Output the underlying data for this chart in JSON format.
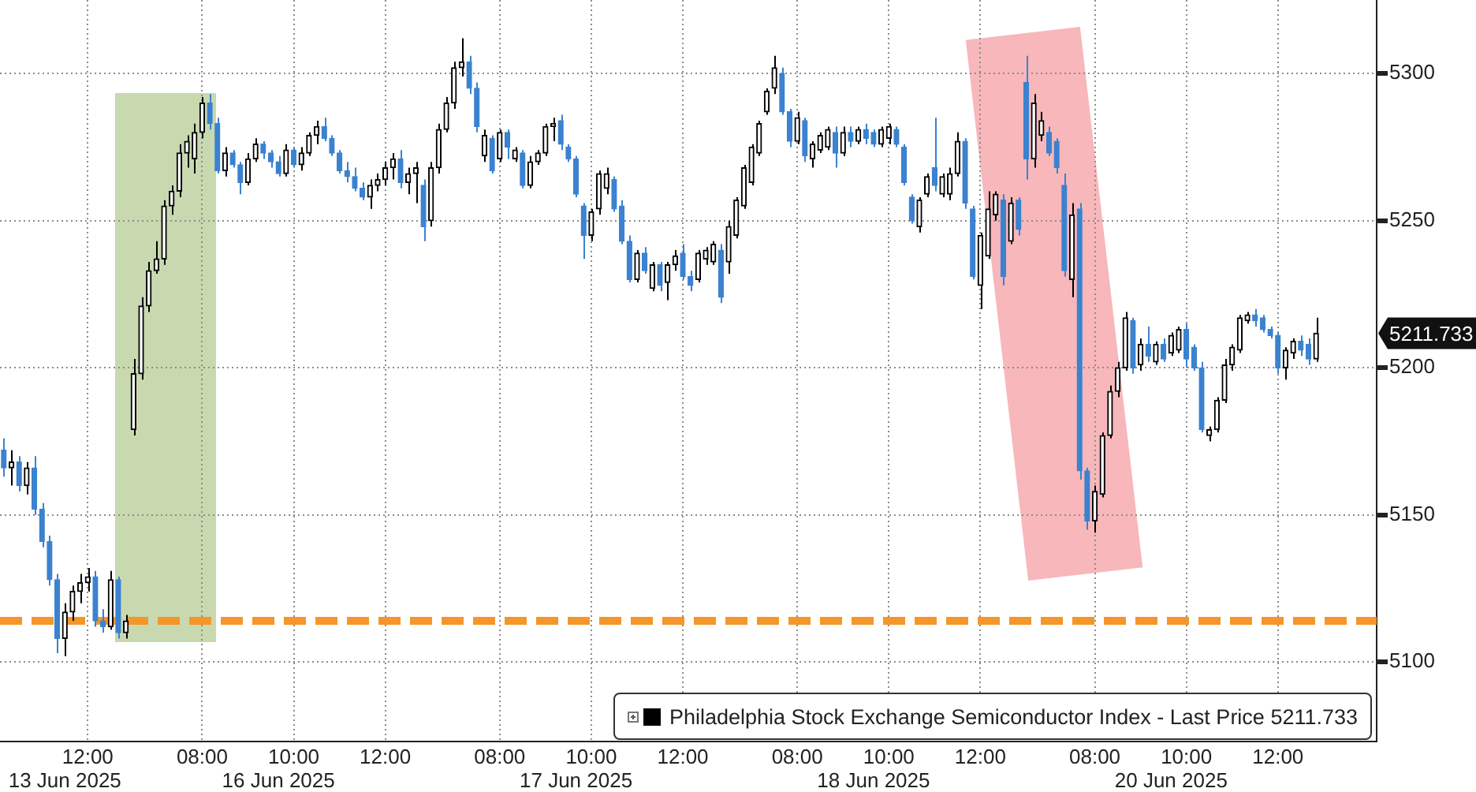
{
  "chart_data": {
    "type": "candlestick",
    "categories": [
      null,
      null,
      null,
      null,
      null,
      null,
      null,
      null,
      "13 Jun 2025",
      null,
      null,
      "12:00",
      null,
      null,
      null,
      null,
      null,
      null,
      null,
      null,
      null,
      null,
      null,
      null,
      null,
      null,
      "08:00",
      null,
      null,
      null,
      null,
      null,
      null,
      null,
      null,
      null,
      "16 Jun 2025",
      null,
      "10:00",
      null,
      null,
      null,
      null,
      null,
      null,
      null,
      null,
      null,
      null,
      null,
      "12:00",
      null,
      null,
      null,
      null,
      null,
      null,
      null,
      null,
      null,
      null,
      null,
      null,
      null,
      null,
      "08:00",
      null,
      null,
      null,
      null,
      null,
      null,
      null,
      null,
      null,
      "17 Jun 2025",
      null,
      "10:00",
      null,
      null,
      null,
      null,
      null,
      null,
      null,
      null,
      null,
      null,
      null,
      "12:00",
      null,
      null,
      null,
      null,
      null,
      null,
      null,
      null,
      null,
      null,
      null,
      null,
      null,
      null,
      "08:00",
      null,
      null,
      null,
      null,
      null,
      null,
      null,
      null,
      null,
      "18 Jun 2025",
      null,
      "10:00",
      null,
      null,
      null,
      null,
      null,
      null,
      null,
      null,
      null,
      null,
      null,
      "12:00",
      null,
      null,
      null,
      null,
      null,
      null,
      null,
      null,
      null,
      null,
      null,
      null,
      null,
      null,
      "08:00",
      null,
      null,
      null,
      null,
      null,
      null,
      null,
      null,
      null,
      "20 Jun 2025",
      null,
      "10:00",
      null,
      null,
      null,
      null,
      null,
      null,
      null,
      null,
      null,
      null,
      null,
      "12:00",
      null,
      null,
      null,
      null,
      null
    ],
    "ylim": [
      5073,
      5325
    ],
    "yticks": [
      5100,
      5150,
      5200,
      5250,
      5300
    ],
    "series": [
      {
        "name": "Philadelphia Stock Exchange Semiconductor Index - Last Price 5211.733",
        "color": "#000000",
        "colors": [
          "#3b82d0",
          "#000000",
          "#3b82d0",
          "#000000",
          "#3b82d0",
          "#3b82d0",
          "#3b82d0",
          "#3b82d0",
          "#000000",
          "#000000",
          "#000000",
          "#000000",
          "#3b82d0",
          "#3b82d0",
          "#000000",
          "#3b82d0",
          "#000000",
          "#000000",
          "#000000",
          "#000000",
          "#000000",
          "#000000",
          "#000000",
          "#000000",
          "#000000",
          "#000000",
          "#000000",
          "#3b82d0",
          "#3b82d0",
          "#000000",
          "#3b82d0",
          "#3b82d0",
          "#000000",
          "#000000",
          "#3b82d0",
          "#3b82d0",
          "#3b82d0",
          "#000000",
          "#3b82d0",
          "#000000",
          "#000000",
          "#000000",
          "#3b82d0",
          "#3b82d0",
          "#3b82d0",
          "#3b82d0",
          "#3b82d0",
          "#3b82d0",
          "#000000",
          "#000000",
          "#000000",
          "#000000",
          "#3b82d0",
          "#000000",
          "#000000",
          "#3b82d0",
          "#000000",
          "#000000",
          "#000000",
          "#000000",
          "#000000",
          "#3b82d0",
          "#3b82d0",
          "#000000",
          "#3b82d0",
          "#000000",
          "#3b82d0",
          "#000000",
          "#3b82d0",
          "#000000",
          "#000000",
          "#000000",
          "#000000",
          "#3b82d0",
          "#3b82d0",
          "#3b82d0",
          "#3b82d0",
          "#000000",
          "#000000",
          "#000000",
          "#3b82d0",
          "#3b82d0",
          "#3b82d0",
          "#000000",
          "#3b82d0",
          "#000000",
          "#3b82d0",
          "#000000",
          "#000000",
          "#3b82d0",
          "#3b82d0",
          "#000000",
          "#000000",
          "#000000",
          "#3b82d0",
          "#000000",
          "#000000",
          "#000000",
          "#000000",
          "#000000",
          "#000000",
          "#000000",
          "#3b82d0",
          "#3b82d0",
          "#000000",
          "#3b82d0",
          "#000000",
          "#000000",
          "#000000",
          "#3b82d0",
          "#000000",
          "#3b82d0",
          "#000000",
          "#3b82d0",
          "#3b82d0",
          "#000000",
          "#000000",
          "#3b82d0",
          "#3b82d0",
          "#3b82d0",
          "#000000",
          "#000000",
          "#3b82d0",
          "#000000",
          "#000000",
          "#000000",
          "#3b82d0",
          "#3b82d0",
          "#000000",
          "#000000",
          "#000000",
          "#3b82d0",
          "#000000",
          "#3b82d0",
          "#3b82d0",
          "#000000",
          "#000000",
          "#3b82d0",
          "#3b82d0",
          "#3b82d0",
          "#000000",
          "#3b82d0",
          "#3b82d0",
          "#000000",
          "#000000",
          "#000000",
          "#000000",
          "#000000",
          "#3b82d0",
          "#000000",
          "#3b82d0",
          "#000000",
          "#3b82d0",
          "#000000",
          "#000000",
          "#3b82d0",
          "#3b82d0",
          "#3b82d0",
          "#000000",
          "#000000",
          "#000000",
          "#000000",
          "#000000",
          "#000000",
          "#3b82d0",
          "#3b82d0",
          "#3b82d0",
          "#3b82d0",
          "#000000",
          "#000000",
          "#3b82d0",
          "#3b82d0",
          "#000000"
        ],
        "ohlc": [
          [
            5172,
            5176,
            5163,
            5166
          ],
          [
            5166,
            5172,
            5160,
            5168
          ],
          [
            5168,
            5170,
            5158,
            5160
          ],
          [
            5160,
            5168,
            5157,
            5166
          ],
          [
            5166,
            5170,
            5150,
            5152
          ],
          [
            5152,
            5154,
            5139,
            5141
          ],
          [
            5141,
            5143,
            5126,
            5128
          ],
          [
            5128,
            5130,
            5103,
            5108
          ],
          [
            5108,
            5120,
            5102,
            5117
          ],
          [
            5117,
            5126,
            5114,
            5124
          ],
          [
            5124,
            5130,
            5120,
            5127
          ],
          [
            5127,
            5132,
            5124,
            5129
          ],
          [
            5129,
            5131,
            5112,
            5114
          ],
          [
            5114,
            5118,
            5110,
            5112
          ],
          [
            5112,
            5131,
            5111,
            5128
          ],
          [
            5128,
            5129,
            5108,
            5110
          ],
          [
            5110,
            5116,
            5108,
            5114
          ],
          [
            5179,
            5203,
            5177,
            5198
          ],
          [
            5198,
            5224,
            5196,
            5221
          ],
          [
            5221,
            5236,
            5219,
            5233
          ],
          [
            5233,
            5243,
            5232,
            5237
          ],
          [
            5237,
            5257,
            5235,
            5255
          ],
          [
            5255,
            5262,
            5252,
            5260
          ],
          [
            5260,
            5276,
            5258,
            5273
          ],
          [
            5273,
            5279,
            5268,
            5277
          ],
          [
            5271,
            5283,
            5266,
            5280
          ],
          [
            5280,
            5292,
            5278,
            5290
          ],
          [
            5290,
            5293,
            5281,
            5283
          ],
          [
            5283,
            5285,
            5266,
            5267
          ],
          [
            5267,
            5275,
            5265,
            5273
          ],
          [
            5273,
            5274,
            5268,
            5269
          ],
          [
            5269,
            5270,
            5259,
            5263
          ],
          [
            5263,
            5273,
            5262,
            5271
          ],
          [
            5271,
            5278,
            5270,
            5276
          ],
          [
            5276,
            5277,
            5271,
            5273
          ],
          [
            5273,
            5274,
            5268,
            5270
          ],
          [
            5270,
            5272,
            5265,
            5266
          ],
          [
            5266,
            5276,
            5265,
            5274
          ],
          [
            5274,
            5275,
            5268,
            5269
          ],
          [
            5269,
            5275,
            5267,
            5273
          ],
          [
            5273,
            5280,
            5272,
            5279
          ],
          [
            5279,
            5284,
            5276,
            5282
          ],
          [
            5282,
            5285,
            5277,
            5278
          ],
          [
            5278,
            5279,
            5272,
            5273
          ],
          [
            5273,
            5274,
            5266,
            5267
          ],
          [
            5267,
            5270,
            5263,
            5265
          ],
          [
            5265,
            5268,
            5260,
            5261
          ],
          [
            5261,
            5263,
            5257,
            5258
          ],
          [
            5258,
            5264,
            5254,
            5262
          ],
          [
            5262,
            5266,
            5260,
            5264
          ],
          [
            5264,
            5270,
            5262,
            5268
          ],
          [
            5268,
            5273,
            5264,
            5271
          ],
          [
            5271,
            5274,
            5261,
            5263
          ],
          [
            5263,
            5268,
            5259,
            5266
          ],
          [
            5266,
            5270,
            5256,
            5268
          ],
          [
            5262,
            5264,
            5243,
            5248
          ],
          [
            5250,
            5270,
            5248,
            5268
          ],
          [
            5268,
            5283,
            5266,
            5281
          ],
          [
            5281,
            5292,
            5280,
            5290
          ],
          [
            5290,
            5304,
            5288,
            5302
          ],
          [
            5302,
            5312,
            5299,
            5304
          ],
          [
            5304,
            5306,
            5293,
            5295
          ],
          [
            5295,
            5297,
            5280,
            5282
          ],
          [
            5272,
            5281,
            5270,
            5279
          ],
          [
            5278,
            5279,
            5266,
            5267
          ],
          [
            5271,
            5281,
            5270,
            5280
          ],
          [
            5280,
            5281,
            5271,
            5275
          ],
          [
            5271,
            5275,
            5270,
            5274
          ],
          [
            5273,
            5274,
            5261,
            5262
          ],
          [
            5262,
            5272,
            5261,
            5270
          ],
          [
            5270,
            5274,
            5269,
            5273
          ],
          [
            5273,
            5283,
            5272,
            5282
          ],
          [
            5282,
            5285,
            5277,
            5283
          ],
          [
            5284,
            5286,
            5274,
            5276
          ],
          [
            5275,
            5276,
            5270,
            5271
          ],
          [
            5271,
            5272,
            5258,
            5259
          ],
          [
            5255,
            5256,
            5237,
            5245
          ],
          [
            5245,
            5254,
            5243,
            5253
          ],
          [
            5254,
            5267,
            5252,
            5266
          ],
          [
            5261,
            5268,
            5259,
            5266
          ],
          [
            5264,
            5265,
            5253,
            5254
          ],
          [
            5255,
            5257,
            5242,
            5243
          ],
          [
            5243,
            5245,
            5229,
            5230
          ],
          [
            5230,
            5240,
            5229,
            5239
          ],
          [
            5239,
            5241,
            5232,
            5233
          ],
          [
            5227,
            5236,
            5226,
            5235
          ],
          [
            5235,
            5236,
            5226,
            5228
          ],
          [
            5229,
            5236,
            5223,
            5235
          ],
          [
            5235,
            5240,
            5233,
            5238
          ],
          [
            5239,
            5242,
            5230,
            5231
          ],
          [
            5231,
            5233,
            5226,
            5228
          ],
          [
            5230,
            5240,
            5229,
            5239
          ],
          [
            5237,
            5241,
            5235,
            5240
          ],
          [
            5236,
            5243,
            5235,
            5242
          ],
          [
            5240,
            5242,
            5222,
            5224
          ],
          [
            5236,
            5250,
            5232,
            5248
          ],
          [
            5245,
            5258,
            5244,
            5257
          ],
          [
            5255,
            5269,
            5254,
            5268
          ],
          [
            5263,
            5276,
            5262,
            5275
          ],
          [
            5273,
            5284,
            5272,
            5283
          ],
          [
            5287,
            5295,
            5286,
            5294
          ],
          [
            5295,
            5306,
            5293,
            5302
          ],
          [
            5300,
            5302,
            5286,
            5287
          ],
          [
            5287,
            5288,
            5275,
            5277
          ],
          [
            5277,
            5287,
            5276,
            5285
          ],
          [
            5284,
            5285,
            5270,
            5272
          ],
          [
            5271,
            5277,
            5268,
            5276
          ],
          [
            5274,
            5280,
            5273,
            5279
          ],
          [
            5275,
            5282,
            5274,
            5281
          ],
          [
            5280,
            5282,
            5268,
            5273
          ],
          [
            5273,
            5282,
            5272,
            5280
          ],
          [
            5280,
            5282,
            5275,
            5277
          ],
          [
            5277,
            5282,
            5276,
            5281
          ],
          [
            5281,
            5283,
            5276,
            5278
          ],
          [
            5280,
            5281,
            5275,
            5276
          ],
          [
            5276,
            5282,
            5275,
            5281
          ],
          [
            5278,
            5283,
            5276,
            5282
          ],
          [
            5281,
            5282,
            5275,
            5276
          ],
          [
            5275,
            5276,
            5262,
            5263
          ],
          [
            5258,
            5259,
            5249,
            5250
          ],
          [
            5248,
            5258,
            5246,
            5257
          ],
          [
            5259,
            5266,
            5258,
            5265
          ],
          [
            5268,
            5285,
            5260,
            5262
          ],
          [
            5259,
            5266,
            5258,
            5265
          ],
          [
            5259,
            5268,
            5257,
            5266
          ],
          [
            5266,
            5280,
            5265,
            5277
          ],
          [
            5277,
            5278,
            5254,
            5256
          ],
          [
            5254,
            5255,
            5230,
            5231
          ],
          [
            5228,
            5246,
            5220,
            5245
          ],
          [
            5238,
            5260,
            5237,
            5254
          ],
          [
            5252,
            5260,
            5250,
            5259
          ],
          [
            5257,
            5259,
            5228,
            5231
          ],
          [
            5243,
            5258,
            5242,
            5256
          ],
          [
            5257,
            5258,
            5245,
            5247
          ],
          [
            5297,
            5306,
            5264,
            5271
          ],
          [
            5271,
            5293,
            5268,
            5290
          ],
          [
            5279,
            5287,
            5277,
            5284
          ],
          [
            5280,
            5282,
            5272,
            5273
          ],
          [
            5277,
            5278,
            5266,
            5268
          ],
          [
            5262,
            5266,
            5231,
            5233
          ],
          [
            5230,
            5256,
            5224,
            5252
          ],
          [
            5254,
            5256,
            5162,
            5165
          ],
          [
            5165,
            5166,
            5145,
            5148
          ],
          [
            5148,
            5160,
            5144,
            5158
          ],
          [
            5157,
            5178,
            5156,
            5177
          ],
          [
            5177,
            5194,
            5176,
            5192
          ],
          [
            5192,
            5202,
            5190,
            5200
          ],
          [
            5200,
            5219,
            5199,
            5217
          ],
          [
            5216,
            5217,
            5198,
            5200
          ],
          [
            5201,
            5210,
            5199,
            5208
          ],
          [
            5208,
            5214,
            5202,
            5204
          ],
          [
            5202,
            5209,
            5201,
            5208
          ],
          [
            5208,
            5210,
            5202,
            5203
          ],
          [
            5205,
            5212,
            5204,
            5211
          ],
          [
            5206,
            5214,
            5205,
            5213
          ],
          [
            5213,
            5215,
            5200,
            5203
          ],
          [
            5207,
            5208,
            5199,
            5200
          ],
          [
            5200,
            5202,
            5178,
            5179
          ],
          [
            5177,
            5180,
            5175,
            5179
          ],
          [
            5179,
            5190,
            5178,
            5189
          ],
          [
            5189,
            5203,
            5188,
            5201
          ],
          [
            5201,
            5208,
            5199,
            5207
          ],
          [
            5206,
            5218,
            5205,
            5217
          ],
          [
            5216,
            5219,
            5215,
            5218
          ],
          [
            5218,
            5220,
            5214,
            5216
          ],
          [
            5217,
            5218,
            5212,
            5213
          ],
          [
            5213,
            5214,
            5210,
            5211
          ],
          [
            5211,
            5212,
            5198,
            5200
          ],
          [
            5200,
            5207,
            5196,
            5206
          ],
          [
            5205,
            5210,
            5203,
            5209
          ],
          [
            5209,
            5211,
            5204,
            5206
          ],
          [
            5208,
            5210,
            5201,
            5203
          ],
          [
            5203,
            5217,
            5202,
            5211.733
          ]
        ]
      }
    ],
    "ref_lines": [
      {
        "axis": "y",
        "value": 5114,
        "color": "#f5962a",
        "line_style": "dashed"
      }
    ],
    "annotations": [
      "5211.733"
    ],
    "grid": true,
    "legend": "bottom right"
  }
}
